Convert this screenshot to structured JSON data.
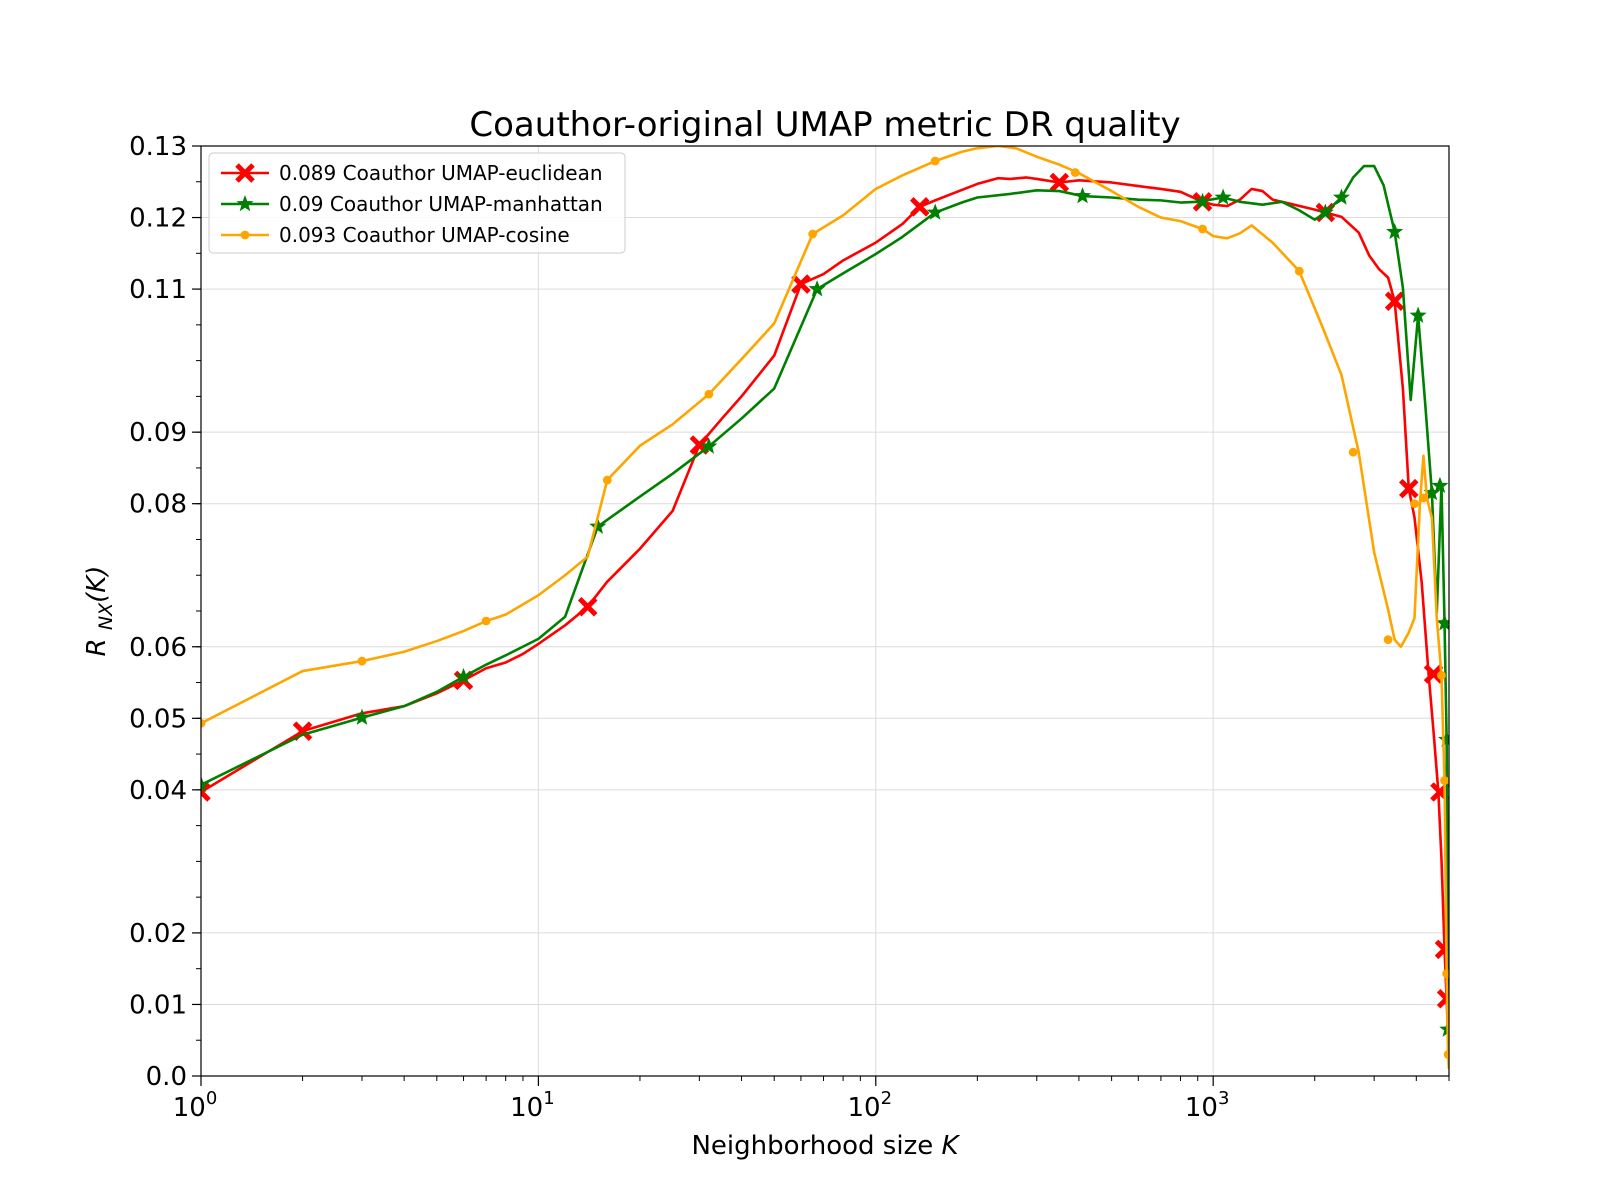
{
  "chart_data": {
    "type": "line",
    "title": "Coauthor-original UMAP metric DR quality",
    "xlabel": "Neighborhood size K",
    "ylabel": "R_NX(K)",
    "xscale": "log",
    "xlim": [
      1,
      5000
    ],
    "ylim": [
      0.0,
      0.13
    ],
    "x_ticks": [
      {
        "value": 1,
        "label": "10",
        "exp": "0"
      },
      {
        "value": 10,
        "label": "10",
        "exp": "1"
      },
      {
        "value": 100,
        "label": "10",
        "exp": "2"
      },
      {
        "value": 1000,
        "label": "10",
        "exp": "3"
      }
    ],
    "y_ticks": [
      "0.0",
      "0.01",
      "0.02",
      "0.04",
      "0.05",
      "0.06",
      "0.08",
      "0.09",
      "0.11",
      "0.12",
      "0.13"
    ],
    "y_tick_values": [
      0.0,
      0.01,
      0.02,
      0.04,
      0.05,
      0.06,
      0.08,
      0.09,
      0.11,
      0.12,
      0.13
    ],
    "grid": true,
    "legend_position": "top-left",
    "series": [
      {
        "name": "0.089 Coauthor UMAP-euclidean",
        "color": "#ff0000",
        "marker": "x",
        "x": [
          1,
          2,
          3,
          4,
          5,
          6,
          7,
          8,
          9,
          10,
          12,
          14,
          16,
          20,
          25,
          30,
          35,
          40,
          50,
          60,
          70,
          80,
          100,
          120,
          135,
          150,
          170,
          200,
          230,
          250,
          280,
          300,
          350,
          400,
          500,
          600,
          700,
          800,
          930,
          1000,
          1100,
          1200,
          1300,
          1400,
          1500,
          1700,
          2000,
          2150,
          2400,
          2700,
          2900,
          3100,
          3300,
          3450,
          3650,
          3800,
          3950,
          4150,
          4350,
          4500,
          4650,
          4750,
          4850,
          4920,
          4960,
          4990
        ],
        "y": [
          0.0397,
          0.0482,
          0.0507,
          0.0517,
          0.0535,
          0.0553,
          0.057,
          0.0578,
          0.059,
          0.0604,
          0.063,
          0.0656,
          0.0691,
          0.0737,
          0.079,
          0.0882,
          0.0919,
          0.095,
          0.1007,
          0.1107,
          0.1121,
          0.114,
          0.1165,
          0.1191,
          0.1215,
          0.1224,
          0.1234,
          0.1247,
          0.1255,
          0.1254,
          0.1256,
          0.1254,
          0.1249,
          0.1252,
          0.1249,
          0.1244,
          0.124,
          0.1236,
          0.1222,
          0.1218,
          0.1216,
          0.1225,
          0.124,
          0.1237,
          0.1225,
          0.1219,
          0.1211,
          0.1207,
          0.1201,
          0.1179,
          0.1147,
          0.1128,
          0.1116,
          0.1083,
          0.0961,
          0.0821,
          0.0781,
          0.069,
          0.0562,
          0.0481,
          0.0397,
          0.0303,
          0.0177,
          0.0108,
          0.0065,
          0.003
        ],
        "marker_x": [
          1,
          2,
          6,
          14,
          30,
          60,
          135,
          350,
          930,
          2150,
          3450,
          3800,
          4500,
          4700,
          4850,
          4920
        ],
        "marker_y": [
          0.0397,
          0.0482,
          0.0553,
          0.0656,
          0.0882,
          0.1107,
          0.1215,
          0.1249,
          0.1222,
          0.1207,
          0.1083,
          0.0821,
          0.0562,
          0.0397,
          0.0177,
          0.0108
        ]
      },
      {
        "name": "0.09 Coauthor UMAP-manhattan",
        "color": "#008000",
        "marker": "star",
        "x": [
          1,
          2,
          3,
          4,
          5,
          6,
          7,
          8,
          10,
          12,
          15,
          20,
          25,
          32,
          40,
          50,
          67,
          80,
          100,
          120,
          150,
          180,
          200,
          250,
          300,
          350,
          410,
          500,
          600,
          700,
          800,
          900,
          1070,
          1200,
          1400,
          1600,
          1800,
          2000,
          2150,
          2400,
          2600,
          2800,
          3000,
          3200,
          3450,
          3650,
          3850,
          4050,
          4250,
          4450,
          4600,
          4750,
          4850,
          4920,
          4960,
          4990
        ],
        "y": [
          0.0407,
          0.0477,
          0.0501,
          0.0517,
          0.0537,
          0.0558,
          0.0575,
          0.0588,
          0.0611,
          0.0642,
          0.0768,
          0.081,
          0.0842,
          0.088,
          0.0919,
          0.0961,
          0.11,
          0.1122,
          0.1149,
          0.1173,
          0.1207,
          0.1221,
          0.1228,
          0.1233,
          0.1238,
          0.1237,
          0.123,
          0.1228,
          0.1225,
          0.1224,
          0.1221,
          0.1222,
          0.1228,
          0.1222,
          0.1218,
          0.1222,
          0.121,
          0.1197,
          0.1207,
          0.1228,
          0.1256,
          0.1272,
          0.1272,
          0.1245,
          0.118,
          0.1102,
          0.0945,
          0.1063,
          0.094,
          0.0815,
          0.0648,
          0.0825,
          0.0633,
          0.047,
          0.022,
          0.0065
        ],
        "marker_x": [
          1,
          3,
          6,
          15,
          32,
          67,
          150,
          410,
          930,
          1070,
          2150,
          2400,
          3450,
          4050,
          4450,
          4700,
          4850,
          4920,
          4960
        ],
        "marker_y": [
          0.0407,
          0.0501,
          0.0558,
          0.0768,
          0.088,
          0.11,
          0.1207,
          0.123,
          0.1222,
          0.1228,
          0.1207,
          0.1228,
          0.118,
          0.1063,
          0.0815,
          0.0825,
          0.0633,
          0.047,
          0.0065
        ]
      },
      {
        "name": "0.093 Coauthor UMAP-cosine",
        "color": "#ffa500",
        "marker": "circle",
        "x": [
          1,
          2,
          3,
          4,
          5,
          6,
          7,
          8,
          10,
          12,
          14,
          16,
          20,
          25,
          32,
          40,
          50,
          65,
          80,
          100,
          120,
          150,
          180,
          200,
          230,
          260,
          300,
          350,
          400,
          500,
          600,
          700,
          800,
          930,
          1000,
          1100,
          1200,
          1300,
          1500,
          1800,
          2100,
          2400,
          2700,
          3000,
          3300,
          3450,
          3600,
          3800,
          3950,
          4100,
          4200,
          4300,
          4450,
          4600,
          4750,
          4850,
          4920,
          4970,
          4995
        ],
        "y": [
          0.0493,
          0.0566,
          0.058,
          0.0593,
          0.0608,
          0.0622,
          0.0636,
          0.0645,
          0.0672,
          0.07,
          0.0726,
          0.0833,
          0.0881,
          0.0911,
          0.0953,
          0.1002,
          0.1052,
          0.1177,
          0.1203,
          0.124,
          0.1259,
          0.1279,
          0.1292,
          0.1297,
          0.13,
          0.1297,
          0.1285,
          0.1274,
          0.1262,
          0.1237,
          0.1215,
          0.12,
          0.1195,
          0.1184,
          0.1174,
          0.1171,
          0.1178,
          0.1189,
          0.1165,
          0.1125,
          0.1049,
          0.098,
          0.0872,
          0.0732,
          0.0652,
          0.061,
          0.06,
          0.062,
          0.064,
          0.08,
          0.0867,
          0.0808,
          0.078,
          0.064,
          0.056,
          0.0413,
          0.0143,
          0.003,
          0.001
        ],
        "marker_x": [
          1,
          3,
          7,
          16,
          32,
          65,
          150,
          390,
          930,
          1800,
          2600,
          3300,
          3950,
          4200,
          4750,
          4850,
          4920,
          4970
        ],
        "marker_y": [
          0.0493,
          0.058,
          0.0636,
          0.0833,
          0.0953,
          0.1177,
          0.1279,
          0.1263,
          0.1184,
          0.1125,
          0.0872,
          0.061,
          0.08,
          0.0808,
          0.056,
          0.0413,
          0.0143,
          0.003
        ]
      }
    ]
  }
}
